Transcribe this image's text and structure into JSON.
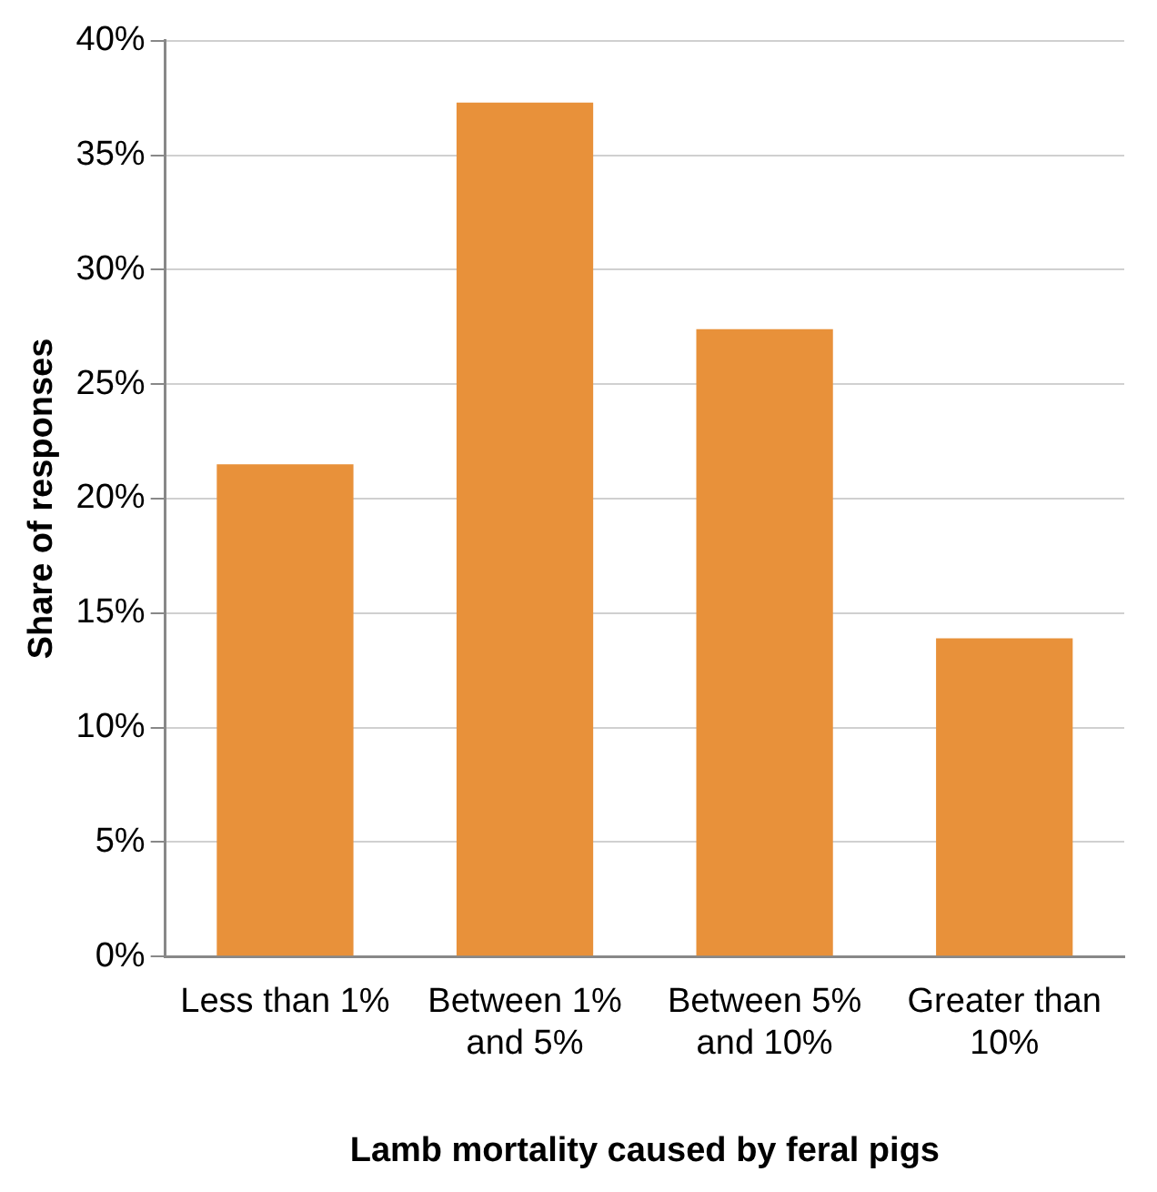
{
  "chart_data": {
    "type": "bar",
    "xlabel": "Lamb mortality caused by feral pigs",
    "ylabel": "Share of responses",
    "categories": [
      "Less than 1%",
      "Between 1% and 5%",
      "Between 5% and 10%",
      "Greater than 10%"
    ],
    "values": [
      21.5,
      37.3,
      27.4,
      13.9
    ],
    "color": "#e8913a",
    "ylim": [
      0,
      40
    ],
    "yticks": [
      {
        "value": 0,
        "label": "0%"
      },
      {
        "value": 5,
        "label": "5%"
      },
      {
        "value": 10,
        "label": "10%"
      },
      {
        "value": 15,
        "label": "15%"
      },
      {
        "value": 20,
        "label": "20%"
      },
      {
        "value": 25,
        "label": "25%"
      },
      {
        "value": 30,
        "label": "30%"
      },
      {
        "value": 35,
        "label": "35%"
      },
      {
        "value": 40,
        "label": "40%"
      }
    ],
    "grid": "y",
    "legend": false
  }
}
